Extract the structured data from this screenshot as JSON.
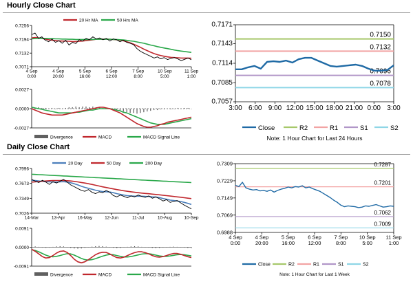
{
  "sections": {
    "hourly_title": "Hourly Close Chart",
    "daily_title": "Daily Close Chart"
  },
  "colors": {
    "price": "#000000",
    "ma_red": "#c0272d",
    "ma_green": "#2aa84a",
    "ma_blue": "#4a7ebb",
    "close_blue": "#1f6aa5",
    "r2": "#a6c86a",
    "r1": "#f2a3a3",
    "s1": "#b196c8",
    "s2": "#8ed6e6",
    "divergence": "#606060"
  },
  "chart_data": [
    {
      "id": "hourly_price",
      "type": "line",
      "yticks": [
        "0.7256",
        "0.7194",
        "0.7132",
        "0.7071"
      ],
      "ylim": [
        0.7071,
        0.7256
      ],
      "xticks": [
        "4 Sep\n0:00",
        "4 Sep\n20:00",
        "5 Sep\n16:00",
        "6 Sep\n12:00",
        "7 Sep\n8:00",
        "10 Sep\n5:00",
        "11 Sep\n1:00"
      ],
      "legend": [
        "20 Hr MA",
        "50 Hrs MA"
      ],
      "series": [
        {
          "name": "Close",
          "values": [
            0.7215,
            0.7222,
            0.7198,
            0.7205,
            0.719,
            0.7183,
            0.7195,
            0.718,
            0.7188,
            0.7176,
            0.719,
            0.7168,
            0.718,
            0.7175,
            0.7192,
            0.7186,
            0.7198,
            0.7192,
            0.7205,
            0.7196,
            0.72,
            0.7192,
            0.7198,
            0.7186,
            0.7196,
            0.7192,
            0.7183,
            0.719,
            0.718,
            0.7176,
            0.717,
            0.7152,
            0.714,
            0.7132,
            0.7125,
            0.7118,
            0.711,
            0.7115,
            0.7106,
            0.7112,
            0.7103,
            0.7108,
            0.7112,
            0.7106,
            0.7098,
            0.7104,
            0.711,
            0.7102
          ]
        },
        {
          "name": "20 Hr MA",
          "values": [
            0.72,
            0.7202,
            0.72,
            0.7198,
            0.7195,
            0.7192,
            0.719,
            0.7188,
            0.7187,
            0.7186,
            0.7186,
            0.7185,
            0.7184,
            0.7184,
            0.7185,
            0.7186,
            0.7188,
            0.719,
            0.7192,
            0.7194,
            0.7195,
            0.7195,
            0.7195,
            0.7194,
            0.7193,
            0.7192,
            0.719,
            0.7187,
            0.7183,
            0.7178,
            0.7172,
            0.7165,
            0.7158,
            0.715,
            0.7143,
            0.7136,
            0.713,
            0.7125,
            0.7121,
            0.7118,
            0.7115,
            0.7113,
            0.7112,
            0.7111,
            0.711,
            0.711,
            0.711,
            0.7109
          ]
        },
        {
          "name": "50 Hrs MA",
          "values": [
            0.7196,
            0.7197,
            0.7198,
            0.7198,
            0.7198,
            0.7197,
            0.7197,
            0.7196,
            0.7196,
            0.7195,
            0.7195,
            0.7194,
            0.7194,
            0.7193,
            0.7193,
            0.7193,
            0.7193,
            0.7193,
            0.7193,
            0.7194,
            0.7194,
            0.7194,
            0.7194,
            0.7194,
            0.7193,
            0.7193,
            0.7192,
            0.7191,
            0.7189,
            0.7187,
            0.7185,
            0.7182,
            0.7179,
            0.7176,
            0.7172,
            0.7168,
            0.7165,
            0.7161,
            0.7158,
            0.7155,
            0.7152,
            0.7149,
            0.7146,
            0.7143,
            0.7141,
            0.7139,
            0.7137,
            0.7135
          ]
        }
      ]
    },
    {
      "id": "hourly_macd",
      "type": "line",
      "yticks": [
        "0.0027",
        "0.0000",
        "-0.0027"
      ],
      "ylim": [
        -0.0027,
        0.0027
      ],
      "legend": [
        "Divergence",
        "MACD",
        "MACD Signal Line"
      ],
      "series": [
        {
          "name": "Divergence",
          "values": [
            0.0002,
            0.0001,
            0.0002,
            0.0001,
            0.0001,
            0.0,
            0.0001,
            0.0,
            0.0001,
            0.0,
            0.0001,
            0.0002,
            0.0002,
            0.0003,
            0.0002,
            0.0003,
            0.0003,
            0.0002,
            0.0003,
            0.0002,
            0.0002,
            0.0001,
            0.0001,
            0.0,
            -0.0001,
            -0.0002,
            -0.0003,
            -0.0004,
            -0.0005,
            -0.0006,
            -0.0006,
            -0.0007,
            -0.0006,
            -0.0005,
            -0.0004,
            -0.0003,
            -0.0002,
            -0.0002,
            -0.0001,
            -0.0001,
            0.0,
            -0.0001,
            0.0,
            0.0001,
            0.0,
            0.0001,
            0.0001,
            0.0
          ]
        },
        {
          "name": "MACD",
          "values": [
            0.0,
            -0.0002,
            -0.0004,
            -0.0006,
            -0.0007,
            -0.0008,
            -0.0009,
            -0.0009,
            -0.0009,
            -0.0009,
            -0.0008,
            -0.0007,
            -0.0006,
            -0.0005,
            -0.0004,
            -0.0003,
            -0.0002,
            -0.0001,
            0.0,
            0.0001,
            0.0002,
            0.0002,
            0.0001,
            0.0,
            -0.0002,
            -0.0004,
            -0.0006,
            -0.0009,
            -0.0012,
            -0.0015,
            -0.0018,
            -0.0021,
            -0.0023,
            -0.0025,
            -0.0026,
            -0.0026,
            -0.0025,
            -0.0024,
            -0.0022,
            -0.0021,
            -0.0019,
            -0.0018,
            -0.0017,
            -0.0016,
            -0.0015,
            -0.0014,
            -0.0013,
            -0.0012
          ]
        },
        {
          "name": "MACD Signal Line",
          "values": [
            0.0002,
            0.0001,
            0.0,
            -0.0001,
            -0.0002,
            -0.0003,
            -0.0004,
            -0.0005,
            -0.0006,
            -0.0006,
            -0.0006,
            -0.0006,
            -0.0006,
            -0.0005,
            -0.0005,
            -0.0004,
            -0.0003,
            -0.0002,
            -0.0002,
            -0.0001,
            0.0,
            0.0,
            0.0,
            0.0,
            -0.0001,
            -0.0002,
            -0.0003,
            -0.0005,
            -0.0006,
            -0.0008,
            -0.001,
            -0.0012,
            -0.0014,
            -0.0016,
            -0.0018,
            -0.002,
            -0.0021,
            -0.0022,
            -0.0022,
            -0.0022,
            -0.0021,
            -0.002,
            -0.0019,
            -0.0018,
            -0.0017,
            -0.0016,
            -0.0015,
            -0.0014
          ]
        }
      ]
    },
    {
      "id": "hourly_pivots",
      "type": "line",
      "yticks": [
        "0.7171",
        "0.7143",
        "0.7114",
        "0.7085",
        "0.7057"
      ],
      "ylim": [
        0.7057,
        0.7171
      ],
      "xticks": [
        "3:00",
        "6:00",
        "9:00",
        "12:00",
        "15:00",
        "18:00",
        "21:00",
        "0:00",
        "3:00"
      ],
      "legend": [
        "Close",
        "R2",
        "R1",
        "S1",
        "S2"
      ],
      "levels": [
        {
          "name": "R2",
          "value": 0.715,
          "label": "0.7150"
        },
        {
          "name": "R1",
          "value": 0.7132,
          "label": "0.7132"
        },
        {
          "name": "S1",
          "value": 0.7096,
          "label": "0.7096"
        },
        {
          "name": "S2",
          "value": 0.7078,
          "label": "0.7078"
        }
      ],
      "series": [
        {
          "name": "Close",
          "values": [
            0.7105,
            0.7105,
            0.7108,
            0.711,
            0.7106,
            0.7116,
            0.7117,
            0.7116,
            0.7118,
            0.7115,
            0.712,
            0.7122,
            0.7122,
            0.7118,
            0.7114,
            0.711,
            0.7109,
            0.711,
            0.7111,
            0.7112,
            0.711,
            0.7106,
            0.7103,
            0.7103,
            0.7104,
            0.7111
          ]
        }
      ],
      "note": "Note: 1 Hour Chart for Last 24 Hours"
    },
    {
      "id": "daily_price",
      "type": "line",
      "yticks": [
        "0.7996",
        "0.7673",
        "0.7349",
        "0.7026"
      ],
      "ylim": [
        0.7026,
        0.7996
      ],
      "xticks": [
        "14-Mar",
        "13-Apr",
        "16-May",
        "12-Jun",
        "11-Jul",
        "10-Aug",
        "10-Sep"
      ],
      "legend": [
        "20 Day",
        "50 Day",
        "200 Day"
      ],
      "series": [
        {
          "name": "Close",
          "values": [
            0.776,
            0.772,
            0.769,
            0.774,
            0.77,
            0.765,
            0.771,
            0.768,
            0.772,
            0.776,
            0.77,
            0.764,
            0.76,
            0.756,
            0.752,
            0.75,
            0.754,
            0.748,
            0.745,
            0.749,
            0.747,
            0.752,
            0.748,
            0.741,
            0.738,
            0.742,
            0.739,
            0.736,
            0.74,
            0.738,
            0.742,
            0.739,
            0.737,
            0.74,
            0.735,
            0.738,
            0.734,
            0.729,
            0.732,
            0.726,
            0.728,
            0.73,
            0.725,
            0.72,
            0.716,
            0.712
          ]
        },
        {
          "name": "20 Day",
          "values": [
            0.774,
            0.7735,
            0.7725,
            0.7715,
            0.771,
            0.7705,
            0.7702,
            0.77,
            0.7705,
            0.771,
            0.77,
            0.7685,
            0.7665,
            0.764,
            0.761,
            0.7585,
            0.7565,
            0.7545,
            0.7525,
            0.751,
            0.7495,
            0.749,
            0.7485,
            0.747,
            0.745,
            0.7435,
            0.742,
            0.7405,
            0.74,
            0.7395,
            0.7395,
            0.7395,
            0.739,
            0.7388,
            0.738,
            0.7375,
            0.7365,
            0.7345,
            0.733,
            0.731,
            0.73,
            0.729,
            0.728,
            0.726,
            0.724,
            0.7215
          ]
        },
        {
          "name": "50 Day",
          "values": [
            0.77,
            0.7705,
            0.7712,
            0.772,
            0.7725,
            0.773,
            0.7735,
            0.7735,
            0.7735,
            0.7735,
            0.773,
            0.7725,
            0.7715,
            0.7705,
            0.7692,
            0.768,
            0.7665,
            0.765,
            0.7632,
            0.7615,
            0.7598,
            0.7583,
            0.7568,
            0.7553,
            0.7538,
            0.7525,
            0.7512,
            0.75,
            0.749,
            0.748,
            0.747,
            0.7462,
            0.7455,
            0.7448,
            0.744,
            0.7432,
            0.7424,
            0.7415,
            0.7406,
            0.7397,
            0.7388,
            0.738,
            0.7372,
            0.7362,
            0.7352,
            0.7342
          ]
        },
        {
          "name": "200 Day",
          "values": [
            0.787,
            0.7866,
            0.7862,
            0.7858,
            0.7854,
            0.785,
            0.7846,
            0.7842,
            0.7838,
            0.7834,
            0.783,
            0.7826,
            0.7822,
            0.7818,
            0.7814,
            0.781,
            0.7806,
            0.7802,
            0.7798,
            0.7794,
            0.779,
            0.7786,
            0.7782,
            0.7778,
            0.7774,
            0.777,
            0.7766,
            0.7762,
            0.7758,
            0.7754,
            0.775,
            0.7746,
            0.7742,
            0.7738,
            0.7734,
            0.773,
            0.7726,
            0.7722,
            0.7718,
            0.7714,
            0.771,
            0.7706,
            0.7702,
            0.7698,
            0.7694,
            0.769
          ]
        }
      ]
    },
    {
      "id": "daily_macd",
      "type": "line",
      "yticks": [
        "0.0091",
        "0.0000",
        "-0.0091"
      ],
      "ylim": [
        -0.0091,
        0.0091
      ],
      "legend": [
        "Divergence",
        "MACD",
        "MACD Signal Line"
      ],
      "series": [
        {
          "name": "Divergence",
          "values": [
            0.0006,
            0.0004,
            0.0002,
            -0.0002,
            -0.0003,
            -0.0002,
            0.0002,
            0.0004,
            0.0005,
            0.0004,
            0.0,
            -0.0004,
            -0.0006,
            -0.0007,
            -0.0006,
            -0.0003,
            0.0,
            0.0003,
            0.0005,
            0.0006,
            0.0005,
            0.0003,
            0.0,
            -0.0003,
            -0.0005,
            -0.0004,
            -0.0001,
            0.0002,
            0.0004,
            0.0005,
            0.0004,
            0.0002,
            0.0,
            -0.0002,
            -0.0004,
            -0.0005,
            -0.0004,
            -0.0002,
            0.0,
            0.0002,
            0.0003,
            0.0002,
            0.0,
            -0.0002,
            -0.0004,
            -0.0005
          ]
        },
        {
          "name": "MACD",
          "values": [
            -0.001,
            -0.002,
            -0.0032,
            -0.0045,
            -0.0052,
            -0.005,
            -0.004,
            -0.0028,
            -0.002,
            -0.0018,
            -0.0025,
            -0.004,
            -0.0058,
            -0.007,
            -0.0075,
            -0.007,
            -0.006,
            -0.0048,
            -0.0036,
            -0.0028,
            -0.0024,
            -0.0025,
            -0.0032,
            -0.0042,
            -0.005,
            -0.0052,
            -0.0048,
            -0.004,
            -0.0032,
            -0.0026,
            -0.0022,
            -0.0022,
            -0.0026,
            -0.0032,
            -0.004,
            -0.0046,
            -0.0048,
            -0.0045,
            -0.004,
            -0.0034,
            -0.003,
            -0.003,
            -0.0034,
            -0.004,
            -0.0046,
            -0.005
          ]
        },
        {
          "name": "MACD Signal Line",
          "values": [
            -0.0012,
            -0.0016,
            -0.0022,
            -0.003,
            -0.0038,
            -0.0044,
            -0.0046,
            -0.0044,
            -0.004,
            -0.0035,
            -0.0031,
            -0.0032,
            -0.0038,
            -0.0046,
            -0.0054,
            -0.006,
            -0.0062,
            -0.006,
            -0.0055,
            -0.0049,
            -0.0043,
            -0.0038,
            -0.0035,
            -0.0036,
            -0.004,
            -0.0044,
            -0.0047,
            -0.0047,
            -0.0045,
            -0.0041,
            -0.0037,
            -0.0033,
            -0.0031,
            -0.0031,
            -0.0034,
            -0.0038,
            -0.0042,
            -0.0044,
            -0.0044,
            -0.0042,
            -0.0039,
            -0.0036,
            -0.0035,
            -0.0036,
            -0.0039,
            -0.0042
          ]
        }
      ]
    },
    {
      "id": "daily_pivots",
      "type": "line",
      "yticks": [
        "0.7309",
        "0.7229",
        "0.7149",
        "0.7069",
        "0.6988"
      ],
      "ylim": [
        0.6988,
        0.7309
      ],
      "xticks": [
        "4 Sep\n0:00",
        "4 Sep\n20:00",
        "5 Sep\n16:00",
        "6 Sep\n12:00",
        "7 Sep\n8:00",
        "10 Sep\n5:00",
        "11 Sep\n1:00"
      ],
      "legend": [
        "Close",
        "R2",
        "R1",
        "S1",
        "S2"
      ],
      "levels": [
        {
          "name": "R2",
          "value": 0.7287,
          "label": "0.7287"
        },
        {
          "name": "R1",
          "value": 0.7201,
          "label": "0.7201"
        },
        {
          "name": "S1",
          "value": 0.7062,
          "label": "0.7062"
        },
        {
          "name": "S2",
          "value": 0.7009,
          "label": "0.7009"
        }
      ],
      "series": [
        {
          "name": "Close",
          "values": [
            0.7208,
            0.7202,
            0.7222,
            0.7196,
            0.719,
            0.7186,
            0.7188,
            0.7182,
            0.7184,
            0.718,
            0.7186,
            0.7176,
            0.7184,
            0.719,
            0.7194,
            0.72,
            0.7196,
            0.7202,
            0.72,
            0.7206,
            0.7196,
            0.72,
            0.7192,
            0.7186,
            0.718,
            0.717,
            0.716,
            0.715,
            0.7138,
            0.7128,
            0.7115,
            0.7108,
            0.7112,
            0.711,
            0.7108,
            0.7104,
            0.7106,
            0.7112,
            0.711,
            0.7114,
            0.7118,
            0.7112,
            0.7106,
            0.7108,
            0.7112,
            0.711
          ]
        }
      ],
      "note": "Note: 1 Hour Chart for Last 1 Week"
    }
  ]
}
